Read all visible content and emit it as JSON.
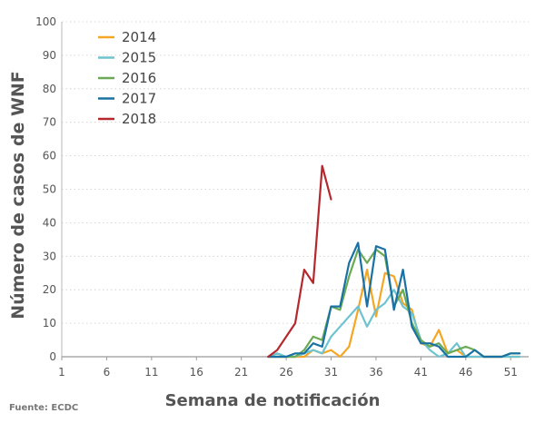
{
  "chart_data": {
    "type": "line",
    "xlabel": "Semana de notificación",
    "ylabel": "Número de casos de WNF",
    "source": "Fuente: ECDC",
    "xlim": [
      1,
      53
    ],
    "ylim": [
      0,
      100
    ],
    "x_ticks": [
      1,
      6,
      11,
      16,
      21,
      26,
      31,
      36,
      41,
      46,
      51
    ],
    "y_ticks": [
      0,
      10,
      20,
      30,
      40,
      50,
      60,
      70,
      80,
      90,
      100
    ],
    "legend_position": "top-left",
    "series": [
      {
        "name": "2014",
        "color": "#f5a623",
        "points": [
          [
            24,
            0
          ],
          [
            25,
            0
          ],
          [
            26,
            0
          ],
          [
            27,
            0
          ],
          [
            28,
            0
          ],
          [
            29,
            2
          ],
          [
            30,
            1
          ],
          [
            31,
            2
          ],
          [
            32,
            0
          ],
          [
            33,
            3
          ],
          [
            34,
            14
          ],
          [
            35,
            26
          ],
          [
            36,
            12
          ],
          [
            37,
            25
          ],
          [
            38,
            24
          ],
          [
            39,
            16
          ],
          [
            40,
            14
          ],
          [
            41,
            4
          ],
          [
            42,
            3
          ],
          [
            43,
            8
          ],
          [
            44,
            1
          ],
          [
            45,
            2
          ],
          [
            46,
            0
          ],
          [
            47,
            0
          ],
          [
            48,
            0
          ],
          [
            49,
            0
          ],
          [
            50,
            0
          ],
          [
            51,
            0
          ],
          [
            52,
            0
          ]
        ]
      },
      {
        "name": "2015",
        "color": "#6ec3d0",
        "points": [
          [
            24,
            0
          ],
          [
            25,
            1
          ],
          [
            26,
            0
          ],
          [
            27,
            0
          ],
          [
            28,
            1
          ],
          [
            29,
            2
          ],
          [
            30,
            1
          ],
          [
            31,
            6
          ],
          [
            32,
            9
          ],
          [
            33,
            12
          ],
          [
            34,
            15
          ],
          [
            35,
            9
          ],
          [
            36,
            14
          ],
          [
            37,
            16
          ],
          [
            38,
            20
          ],
          [
            39,
            15
          ],
          [
            40,
            13
          ],
          [
            41,
            5
          ],
          [
            42,
            2
          ],
          [
            43,
            0
          ],
          [
            44,
            1
          ],
          [
            45,
            4
          ],
          [
            46,
            0
          ],
          [
            47,
            0
          ],
          [
            48,
            0
          ],
          [
            49,
            0
          ],
          [
            50,
            0
          ],
          [
            51,
            0
          ],
          [
            52,
            0
          ]
        ]
      },
      {
        "name": "2016",
        "color": "#6aaa54",
        "points": [
          [
            24,
            0
          ],
          [
            25,
            0
          ],
          [
            26,
            0
          ],
          [
            27,
            0
          ],
          [
            28,
            2
          ],
          [
            29,
            6
          ],
          [
            30,
            5
          ],
          [
            31,
            15
          ],
          [
            32,
            14
          ],
          [
            33,
            24
          ],
          [
            34,
            32
          ],
          [
            35,
            28
          ],
          [
            36,
            32
          ],
          [
            37,
            30
          ],
          [
            38,
            15
          ],
          [
            39,
            20
          ],
          [
            40,
            10
          ],
          [
            41,
            5
          ],
          [
            42,
            3
          ],
          [
            43,
            4
          ],
          [
            44,
            1
          ],
          [
            45,
            2
          ],
          [
            46,
            3
          ],
          [
            47,
            2
          ],
          [
            48,
            0
          ],
          [
            49,
            0
          ],
          [
            50,
            0
          ],
          [
            51,
            1
          ],
          [
            52,
            1
          ]
        ]
      },
      {
        "name": "2017",
        "color": "#1a72a4",
        "points": [
          [
            24,
            0
          ],
          [
            25,
            0
          ],
          [
            26,
            0
          ],
          [
            27,
            1
          ],
          [
            28,
            1
          ],
          [
            29,
            4
          ],
          [
            30,
            3
          ],
          [
            31,
            15
          ],
          [
            32,
            15
          ],
          [
            33,
            28
          ],
          [
            34,
            34
          ],
          [
            35,
            15
          ],
          [
            36,
            33
          ],
          [
            37,
            32
          ],
          [
            38,
            14
          ],
          [
            39,
            26
          ],
          [
            40,
            9
          ],
          [
            41,
            4
          ],
          [
            42,
            4
          ],
          [
            43,
            3
          ],
          [
            44,
            0
          ],
          [
            45,
            0
          ],
          [
            46,
            0
          ],
          [
            47,
            2
          ],
          [
            48,
            0
          ],
          [
            49,
            0
          ],
          [
            50,
            0
          ],
          [
            51,
            1
          ],
          [
            52,
            1
          ]
        ]
      },
      {
        "name": "2018",
        "color": "#b5282e",
        "points": [
          [
            24,
            0
          ],
          [
            25,
            2
          ],
          [
            26,
            6
          ],
          [
            27,
            10
          ],
          [
            28,
            26
          ],
          [
            29,
            22
          ],
          [
            30,
            57
          ],
          [
            31,
            47
          ]
        ]
      }
    ]
  }
}
